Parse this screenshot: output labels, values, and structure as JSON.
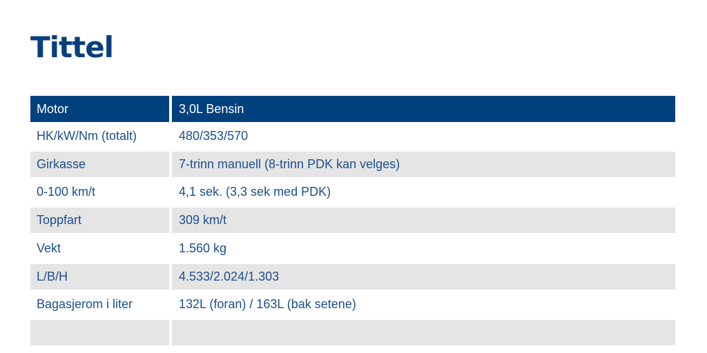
{
  "page": {
    "title": "Tittel"
  },
  "colors": {
    "title_color": "#093f7d",
    "header_bg": "#00417e",
    "header_text": "#ffffff",
    "row_text": "#1c4f8f",
    "row_bg": "#ffffff",
    "row_alt_bg": "#e5e5e5"
  },
  "table": {
    "header": {
      "label": "Motor",
      "value": "3,0L Bensin"
    },
    "rows": [
      {
        "label": "HK/kW/Nm (totalt)",
        "value": "480/353/570"
      },
      {
        "label": "Girkasse",
        "value": "7-trinn manuell (8-trinn PDK kan velges)"
      },
      {
        "label": "0-100 km/t",
        "value": "4,1 sek. (3,3 sek med PDK)"
      },
      {
        "label": "Toppfart",
        "value": "309 km/t"
      },
      {
        "label": "Vekt",
        "value": "1.560 kg"
      },
      {
        "label": "L/B/H",
        "value": "4.533/2.024/1.303"
      },
      {
        "label": "Bagasjerom i liter",
        "value": "132L (foran) / 163L (bak setene)"
      },
      {
        "label": "",
        "value": ""
      }
    ]
  }
}
